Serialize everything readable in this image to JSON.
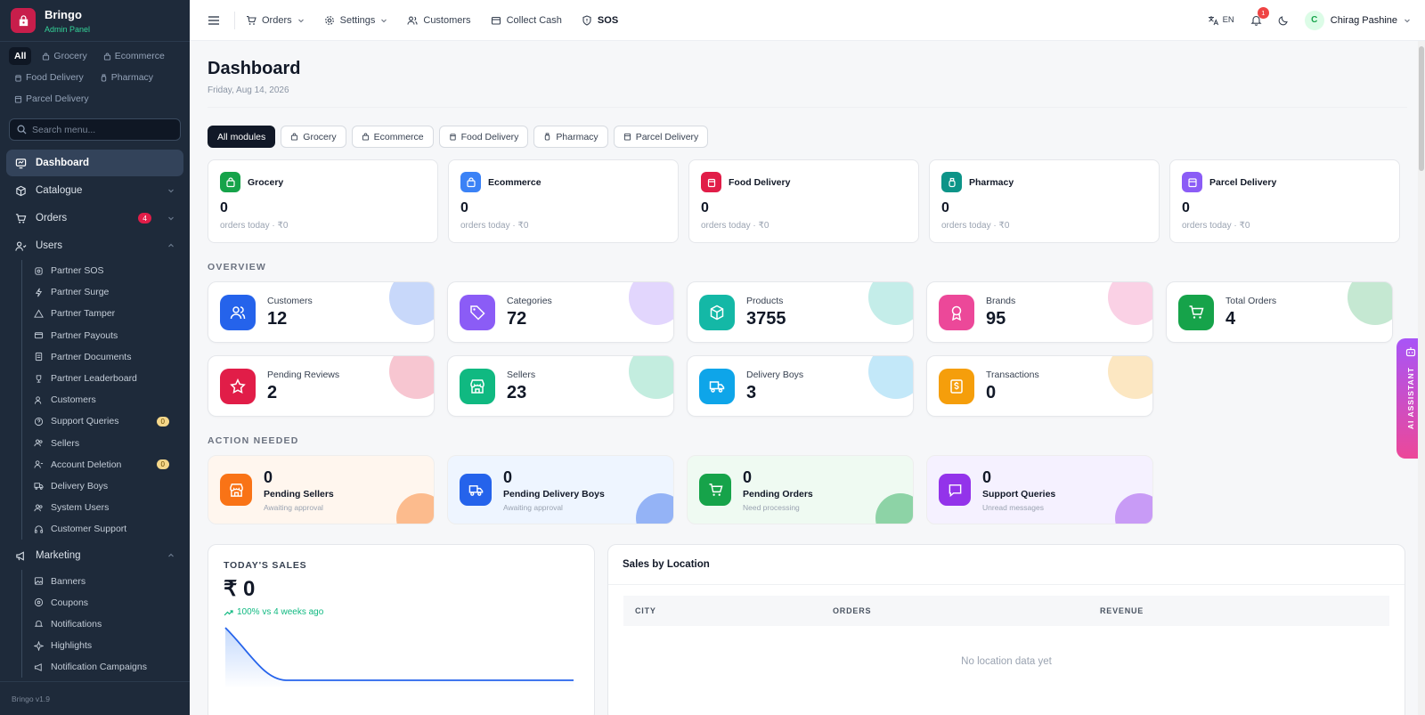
{
  "brand": {
    "name": "Bringo",
    "subtitle": "Admin Panel"
  },
  "sidebar": {
    "module_chips": [
      {
        "label": "All",
        "active": true
      },
      {
        "label": "Grocery"
      },
      {
        "label": "Ecommerce"
      },
      {
        "label": "Food Delivery"
      },
      {
        "label": "Pharmacy"
      },
      {
        "label": "Parcel Delivery"
      }
    ],
    "search_placeholder": "Search menu...",
    "items": [
      {
        "label": "Dashboard",
        "icon": "dashboard-icon",
        "active": true
      },
      {
        "label": "Catalogue",
        "icon": "box-icon"
      },
      {
        "label": "Orders",
        "icon": "cart-icon",
        "badge": "4"
      },
      {
        "label": "Users",
        "icon": "users-icon"
      }
    ],
    "users_sub": [
      {
        "label": "Partner SOS"
      },
      {
        "label": "Partner Surge"
      },
      {
        "label": "Partner Tamper"
      },
      {
        "label": "Partner Payouts"
      },
      {
        "label": "Partner Documents"
      },
      {
        "label": "Partner Leaderboard"
      },
      {
        "label": "Customers"
      },
      {
        "label": "Support Queries",
        "badge": "0"
      },
      {
        "label": "Sellers"
      },
      {
        "label": "Account Deletion",
        "badge": "0"
      },
      {
        "label": "Delivery Boys"
      },
      {
        "label": "System Users"
      },
      {
        "label": "Customer Support"
      }
    ],
    "marketing": {
      "label": "Marketing"
    },
    "marketing_sub": [
      {
        "label": "Banners"
      },
      {
        "label": "Coupons"
      },
      {
        "label": "Notifications"
      },
      {
        "label": "Highlights"
      },
      {
        "label": "Notification Campaigns"
      }
    ],
    "footer": "Bringo v1.9"
  },
  "topbar": {
    "items": [
      {
        "label": "Orders",
        "dropdown": true
      },
      {
        "label": "Settings",
        "dropdown": true
      },
      {
        "label": "Customers"
      },
      {
        "label": "Collect Cash"
      },
      {
        "label": "SOS"
      }
    ],
    "lang": "EN",
    "notif_count": "1",
    "user": {
      "initial": "C",
      "name": "Chirag Pashine"
    }
  },
  "page": {
    "title": "Dashboard",
    "date": "Friday, Aug 14, 2026"
  },
  "tabs": [
    "All modules",
    "Grocery",
    "Ecommerce",
    "Food Delivery",
    "Pharmacy",
    "Parcel Delivery"
  ],
  "modules": [
    {
      "name": "Grocery",
      "value": "0",
      "sub": "orders today · ₹0",
      "color": "#16a34a"
    },
    {
      "name": "Ecommerce",
      "value": "0",
      "sub": "orders today · ₹0",
      "color": "#3b82f6"
    },
    {
      "name": "Food Delivery",
      "value": "0",
      "sub": "orders today · ₹0",
      "color": "#e11d48"
    },
    {
      "name": "Pharmacy",
      "value": "0",
      "sub": "orders today · ₹0",
      "color": "#0d9488"
    },
    {
      "name": "Parcel Delivery",
      "value": "0",
      "sub": "orders today · ₹0",
      "color": "#8b5cf6"
    }
  ],
  "overview": {
    "label": "OVERVIEW",
    "stats": [
      {
        "label": "Customers",
        "value": "12",
        "color": "#2563eb"
      },
      {
        "label": "Categories",
        "value": "72",
        "color": "#8b5cf6"
      },
      {
        "label": "Products",
        "value": "3755",
        "color": "#14b8a6"
      },
      {
        "label": "Brands",
        "value": "95",
        "color": "#ec4899"
      },
      {
        "label": "Total Orders",
        "value": "4",
        "color": "#16a34a"
      },
      {
        "label": "Pending Reviews",
        "value": "2",
        "color": "#e11d48"
      },
      {
        "label": "Sellers",
        "value": "23",
        "color": "#10b981"
      },
      {
        "label": "Delivery Boys",
        "value": "3",
        "color": "#0ea5e9"
      },
      {
        "label": "Transactions",
        "value": "0",
        "color": "#f59e0b"
      }
    ]
  },
  "action": {
    "label": "ACTION NEEDED",
    "items": [
      {
        "value": "0",
        "title": "Pending Sellers",
        "sub": "Awaiting approval",
        "color": "#f97316",
        "bg": "#fff6ee"
      },
      {
        "value": "0",
        "title": "Pending Delivery Boys",
        "sub": "Awaiting approval",
        "color": "#2563eb",
        "bg": "#eef5ff"
      },
      {
        "value": "0",
        "title": "Pending Orders",
        "sub": "Need processing",
        "color": "#16a34a",
        "bg": "#effaf2"
      },
      {
        "value": "0",
        "title": "Support Queries",
        "sub": "Unread messages",
        "color": "#9333ea",
        "bg": "#f5f1ff"
      }
    ]
  },
  "sales": {
    "label": "TODAY'S SALES",
    "value": "₹ 0",
    "delta": "100% vs 4 weeks ago"
  },
  "location": {
    "title": "Sales by Location",
    "columns": [
      "CITY",
      "ORDERS",
      "REVENUE"
    ],
    "empty": "No location data yet"
  },
  "ai_assistant": "AI ASSISTANT"
}
